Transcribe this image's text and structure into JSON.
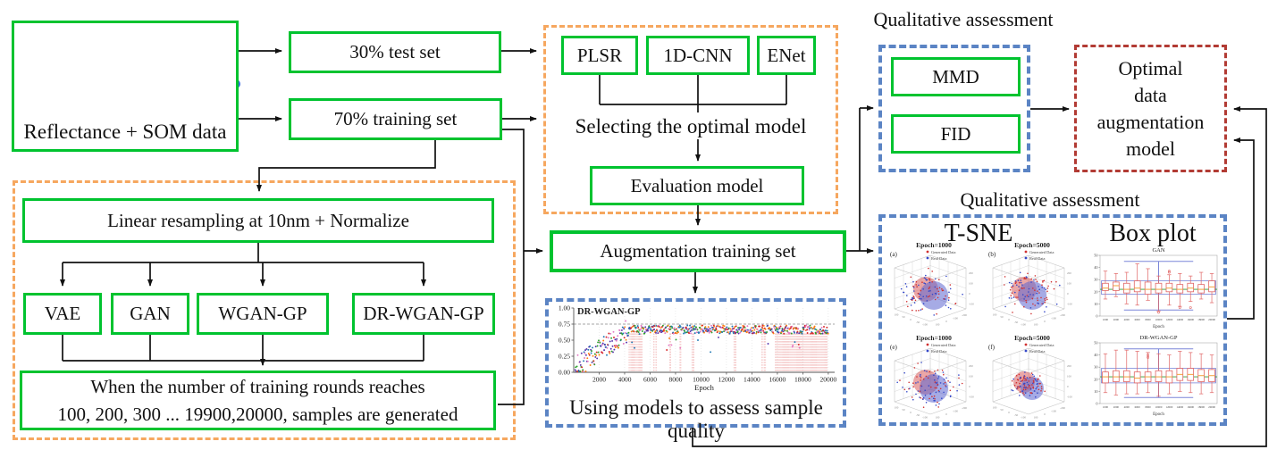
{
  "colors": {
    "node_green": "#00c32f",
    "group_orange": "#f6a75f",
    "group_blue": "#5b84c4",
    "group_red": "#b23b34",
    "connector": "#111111",
    "generated_red": "#d03030",
    "real_blue": "#3448c8"
  },
  "source_box": {
    "label": "Reflectance + SOM data",
    "spectra_palette": [
      "#c94f4f",
      "#e36a2e",
      "#d4a015",
      "#8aa61c",
      "#3f9e3f",
      "#2fae8f",
      "#3a7fd5",
      "#2f4fc0",
      "#7a4fd0",
      "#b044c0",
      "#d75a9e",
      "#e05050",
      "#8a5a2a",
      "#888888",
      "#c59a2a",
      "#5ab0d8",
      "#e08ab0",
      "#6a6ad8"
    ],
    "som_dots": {
      "teal": "#3ecfa8",
      "blue": "#3e6be0",
      "points": [
        {
          "x": 20,
          "y": 14,
          "c": "t"
        },
        {
          "x": 37,
          "y": 16,
          "c": "b"
        },
        {
          "x": 57,
          "y": 12,
          "c": "b"
        },
        {
          "x": 24,
          "y": 30,
          "c": "b"
        },
        {
          "x": 42,
          "y": 28,
          "c": "b"
        },
        {
          "x": 62,
          "y": 27,
          "c": "t"
        },
        {
          "x": 18,
          "y": 45,
          "c": "t"
        },
        {
          "x": 34,
          "y": 43,
          "c": "b"
        },
        {
          "x": 52,
          "y": 42,
          "c": "t"
        },
        {
          "x": 68,
          "y": 40,
          "c": "b"
        },
        {
          "x": 28,
          "y": 58,
          "c": "b"
        },
        {
          "x": 45,
          "y": 57,
          "c": "t"
        },
        {
          "x": 61,
          "y": 55,
          "c": "t"
        }
      ]
    }
  },
  "split": {
    "test_label": "30% test set",
    "train_label": "70% training set"
  },
  "preprocess_group": {
    "resample_label": "Linear resampling at 10nm + Normalize",
    "generators": [
      "VAE",
      "GAN",
      "WGAN-GP",
      "DR-WGAN-GP"
    ],
    "rounds_line1": "When the number of training rounds reaches",
    "rounds_line2": "100, 200, 300 ... 19900,20000, samples are generated"
  },
  "model_select_group": {
    "models": [
      "PLSR",
      "1D-CNN",
      "ENet"
    ],
    "caption": "Selecting the optimal model",
    "evaluation_label": "Evaluation model"
  },
  "augmentation_label": "Augmentation training set",
  "quality_group": {
    "caption": "Using models to assess sample quality"
  },
  "qualitative1": {
    "title": "Qualitative assessment",
    "metrics": [
      "MMD",
      "FID"
    ]
  },
  "optimal_box": {
    "lines": [
      "Optimal",
      "data",
      "augmentation",
      "model"
    ]
  },
  "qualitative2": {
    "title": "Qualitative assessment",
    "tsne_heading": "T-SNE",
    "boxplot_heading": "Box plot"
  },
  "chart_data": [
    {
      "id": "quality_scatter",
      "type": "scatter",
      "title": "DR-WGAN-GP",
      "xlabel": "Epoch",
      "xlim": [
        0,
        20500
      ],
      "ylim": [
        0,
        1
      ],
      "xticks": [
        2000,
        4000,
        6000,
        8000,
        10000,
        12000,
        14000,
        16000,
        18000,
        20000
      ],
      "yticks": [
        0,
        0.25,
        0.5,
        0.75,
        1
      ],
      "ref_line": 0.75,
      "palette": [
        "#d62728",
        "#ff7f0e",
        "#2ca02c",
        "#1f77b4",
        "#5533aa",
        "#e377c2"
      ],
      "stem_ranges": [
        [
          4350,
          5400,
          80
        ],
        [
          6280,
          6600,
          110
        ],
        [
          7550,
          7620,
          70
        ],
        [
          8350,
          8420,
          70
        ],
        [
          9280,
          9450,
          80
        ],
        [
          12580,
          12760,
          90
        ],
        [
          14780,
          15080,
          100
        ],
        [
          15850,
          19900,
          75
        ]
      ],
      "trend": "metric rises from ~0.1 below epoch 4000 then fluctuates around 0.65-0.75 up to epoch 20000"
    },
    {
      "id": "tsne_grid",
      "type": "scatter3d",
      "legend": [
        {
          "label": "Generated Data",
          "color": "#d03030"
        },
        {
          "label": "Real Data",
          "color": "#3448c8"
        }
      ],
      "subplots": [
        {
          "label": "(a)",
          "title": "Epoch=1000",
          "tight": false
        },
        {
          "label": "(b)",
          "title": "Epoch=5000",
          "tight": false
        },
        {
          "label": "(e)",
          "title": "Epoch=1000",
          "tight": false
        },
        {
          "label": "(f)",
          "title": "Epoch=5000",
          "tight": true
        }
      ],
      "ticks": {
        "xa": [
          "-100",
          "-50",
          "0",
          "50",
          "100"
        ],
        "xb": [
          "100",
          "0",
          "-100",
          "-200"
        ],
        "z": [
          "-100",
          "0",
          "100",
          "200"
        ]
      }
    },
    {
      "id": "box_gan",
      "type": "box",
      "title": "GAN",
      "xlabel": "Epoch",
      "ylim": [
        0,
        50
      ],
      "yticks": [
        0,
        10,
        20,
        30,
        40,
        50
      ],
      "categories": [
        "1000",
        "2000",
        "4000",
        "6000",
        "8000",
        "10000",
        "12000",
        "14000",
        "16000",
        "18000",
        "20000"
      ],
      "green_line": 22,
      "blue_band": [
        18,
        29
      ],
      "blue_lines": [
        45,
        5
      ],
      "boxes": [
        {
          "med": 23,
          "q1": 21,
          "q3": 27,
          "lo": 14,
          "hi": 37,
          "out": []
        },
        {
          "med": 25,
          "q1": 21,
          "q3": 28,
          "lo": 16,
          "hi": 35,
          "out": []
        },
        {
          "med": 22,
          "q1": 19,
          "q3": 27,
          "lo": 10,
          "hi": 36,
          "out": []
        },
        {
          "med": 23,
          "q1": 20,
          "q3": 29,
          "lo": 9,
          "hi": 43,
          "out": []
        },
        {
          "med": 22,
          "q1": 18,
          "q3": 28,
          "lo": 13,
          "hi": 39,
          "out": []
        },
        {
          "med": 22,
          "q1": 19,
          "q3": 27,
          "lo": 4,
          "hi": 33,
          "out": [
            3
          ]
        },
        {
          "med": 23,
          "q1": 20,
          "q3": 27,
          "lo": 9,
          "hi": 34,
          "out": [
            37,
            36
          ]
        },
        {
          "med": 22,
          "q1": 19,
          "q3": 26,
          "lo": 8,
          "hi": 35,
          "out": [
            7
          ]
        },
        {
          "med": 23,
          "q1": 20,
          "q3": 27,
          "lo": 12,
          "hi": 33,
          "out": [
            7
          ]
        },
        {
          "med": 22,
          "q1": 19,
          "q3": 26,
          "lo": 14,
          "hi": 36,
          "out": []
        },
        {
          "med": 24,
          "q1": 20,
          "q3": 29,
          "lo": 11,
          "hi": 35,
          "out": []
        }
      ]
    },
    {
      "id": "box_drwgan",
      "type": "box",
      "title": "DR-WGAN-GP",
      "xlabel": "Epoch",
      "ylim": [
        0,
        50
      ],
      "yticks": [
        0,
        10,
        20,
        30,
        40,
        50
      ],
      "categories": [
        "1000",
        "2000",
        "4000",
        "6000",
        "8000",
        "10000",
        "12000",
        "14000",
        "16000",
        "18000",
        "20000"
      ],
      "green_line": 22,
      "blue_band": [
        17,
        29
      ],
      "blue_lines": [
        45,
        5
      ],
      "boxes": [
        {
          "med": 22,
          "q1": 17,
          "q3": 26,
          "lo": 9,
          "hi": 41,
          "out": []
        },
        {
          "med": 22,
          "q1": 18,
          "q3": 27,
          "lo": 7,
          "hi": 44,
          "out": []
        },
        {
          "med": 22,
          "q1": 18,
          "q3": 27,
          "lo": 8,
          "hi": 44,
          "out": []
        },
        {
          "med": 21,
          "q1": 17,
          "q3": 26,
          "lo": 8,
          "hi": 43,
          "out": []
        },
        {
          "med": 22,
          "q1": 18,
          "q3": 26,
          "lo": 9,
          "hi": 42,
          "out": [
            40,
            38
          ]
        },
        {
          "med": 22,
          "q1": 18,
          "q3": 27,
          "lo": 6,
          "hi": 41,
          "out": []
        },
        {
          "med": 22,
          "q1": 17,
          "q3": 27,
          "lo": 8,
          "hi": 40,
          "out": []
        },
        {
          "med": 24,
          "q1": 19,
          "q3": 29,
          "lo": 10,
          "hi": 43,
          "out": []
        },
        {
          "med": 24,
          "q1": 19,
          "q3": 29,
          "lo": 9,
          "hi": 42,
          "out": []
        },
        {
          "med": 23,
          "q1": 18,
          "q3": 28,
          "lo": 8,
          "hi": 41,
          "out": []
        },
        {
          "med": 23,
          "q1": 18,
          "q3": 28,
          "lo": 9,
          "hi": 40,
          "out": []
        }
      ]
    }
  ]
}
